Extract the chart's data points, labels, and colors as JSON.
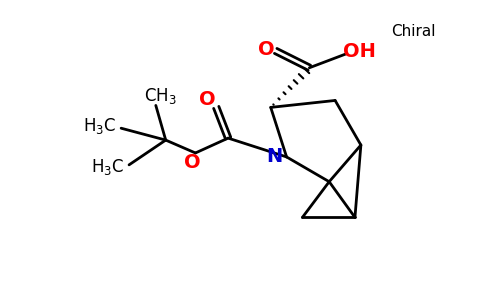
{
  "background_color": "#ffffff",
  "figsize": [
    4.84,
    3.0
  ],
  "dpi": 100,
  "atom_colors": {
    "O": "#ff0000",
    "N": "#0000cc",
    "C": "#000000"
  },
  "bond_color": "#000000",
  "bond_width": 2.0,
  "font_size_atom": 14,
  "font_size_group": 12,
  "font_size_chiral": 11
}
